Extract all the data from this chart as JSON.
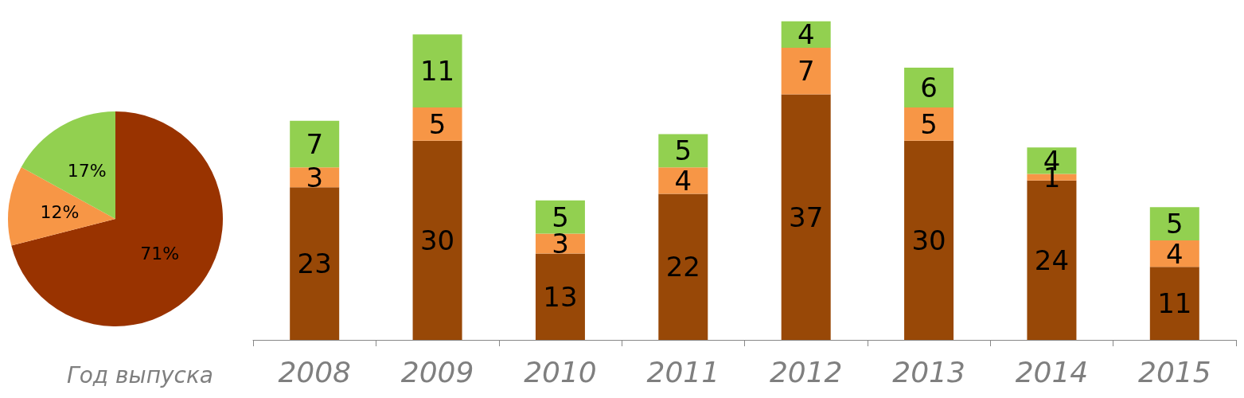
{
  "chart_data": [
    {
      "type": "pie",
      "categories": [
        null,
        null,
        null
      ],
      "values": [
        71,
        12,
        17
      ],
      "colors": [
        "#993300",
        "#f79646",
        "#92d050"
      ],
      "value_labels": [
        "71%",
        "12%",
        "17%"
      ]
    },
    {
      "type": "bar",
      "xlabel": "Год выпуска",
      "categories": [
        "2008",
        "2009",
        "2010",
        "2011",
        "2012",
        "2013",
        "2014",
        "2015"
      ],
      "stacked": true,
      "data_labels": true,
      "series": [
        {
          "color": "#984807",
          "values": [
            23,
            30,
            13,
            22,
            37,
            30,
            24,
            11
          ]
        },
        {
          "color": "#f79646",
          "values": [
            3,
            5,
            3,
            4,
            7,
            5,
            1,
            4
          ]
        },
        {
          "color": "#92d050",
          "values": [
            7,
            11,
            5,
            5,
            4,
            6,
            4,
            5
          ]
        }
      ]
    }
  ]
}
